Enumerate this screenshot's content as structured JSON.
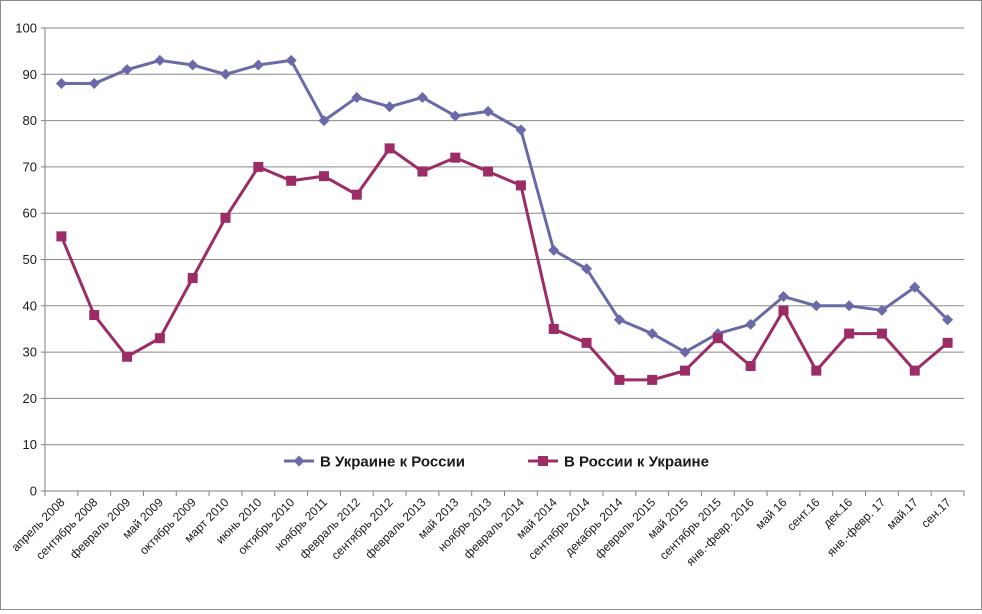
{
  "chart_data": {
    "type": "line",
    "title": "",
    "xlabel": "",
    "ylabel": "",
    "ylim": [
      0,
      100
    ],
    "yticks": [
      0,
      10,
      20,
      30,
      40,
      50,
      60,
      70,
      80,
      90,
      100
    ],
    "grid": "horizontal",
    "legend_position": "inside-bottom-center",
    "categories": [
      "апрель 2008",
      "сентябрь 2008",
      "февраль 2009",
      "май 2009",
      "октябрь 2009",
      "март 2010",
      "июнь 2010",
      "октябрь 2010",
      "ноябрь 2011",
      "февраль 2012",
      "сентябрь 2012",
      "февраль 2013",
      "май 2013",
      "ноябрь 2013",
      "февраль 2014",
      "май 2014",
      "сентябрь 2014",
      "декабрь 2014",
      "февраль 2015",
      "май 2015",
      "сентябрь 2015",
      "янв.-февр. 2016",
      "май 16",
      "сент.16",
      "дек.16",
      "янв.-февр. 17",
      "май.17",
      "сен.17"
    ],
    "series": [
      {
        "name": "В Украине к России",
        "color": "#6a6aa8",
        "marker": "diamond",
        "values": [
          88,
          88,
          91,
          93,
          92,
          90,
          92,
          93,
          80,
          85,
          83,
          85,
          81,
          82,
          78,
          52,
          48,
          37,
          34,
          30,
          34,
          36,
          42,
          40,
          40,
          39,
          44,
          37
        ]
      },
      {
        "name": "В России к Украине",
        "color": "#9b2c66",
        "marker": "square",
        "values": [
          55,
          38,
          29,
          33,
          46,
          59,
          70,
          67,
          68,
          64,
          74,
          69,
          72,
          69,
          66,
          35,
          32,
          24,
          24,
          26,
          33,
          27,
          39,
          26,
          34,
          34,
          26,
          32
        ]
      }
    ]
  }
}
